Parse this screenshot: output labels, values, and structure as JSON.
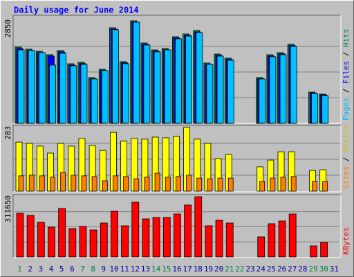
{
  "title": "Daily usage for June 2014",
  "chart_data": [
    {
      "type": "bar",
      "ylim": [
        0,
        2850
      ],
      "yticks": [
        2850
      ],
      "legend_separator": " / ",
      "series": [
        {
          "name": "Hits",
          "color": "#00805c",
          "values": [
            2118,
            2061,
            2003,
            1907,
            2022,
            1656,
            1695,
            1271,
            1502,
            2658,
            1714,
            2850,
            2234,
            2041,
            2080,
            2407,
            2484,
            2580,
            1675,
            1926,
            1810,
            0,
            0,
            1271,
            1906,
            1964,
            2195,
            0,
            867,
            809,
            0
          ]
        },
        {
          "name": "Files",
          "color": "#0000ff",
          "values": [
            2080,
            2025,
            1965,
            1870,
            1985,
            1620,
            1660,
            1240,
            1470,
            2620,
            1680,
            2810,
            2195,
            2005,
            2045,
            2370,
            2445,
            2540,
            1640,
            1890,
            1775,
            0,
            0,
            1240,
            1870,
            1930,
            2160,
            0,
            845,
            790,
            0
          ]
        },
        {
          "name": "Pages",
          "color": "#00c0ff",
          "values": [
            2041,
            2022,
            1964,
            1618,
            1945,
            1599,
            1637,
            1233,
            1464,
            2600,
            1656,
            2811,
            2176,
            1984,
            2041,
            2349,
            2426,
            2522,
            1637,
            1868,
            1752,
            0,
            0,
            1233,
            1849,
            1906,
            2137,
            0,
            828,
            770,
            0
          ]
        }
      ]
    },
    {
      "type": "bar",
      "ylim": [
        0,
        283
      ],
      "yticks": [
        283
      ],
      "legend_separator": " / ",
      "series": [
        {
          "name": "Visits",
          "color": "#ffff00",
          "text_color": "#d0c000",
          "values": [
            218,
            212,
            200,
            169,
            212,
            200,
            234,
            203,
            181,
            261,
            222,
            234,
            231,
            240,
            237,
            243,
            283,
            231,
            212,
            145,
            163,
            0,
            0,
            108,
            138,
            175,
            175,
            0,
            92,
            95,
            0
          ]
        },
        {
          "name": "Sites",
          "color": "#ff8000",
          "values": [
            68,
            71,
            68,
            62,
            83,
            71,
            68,
            65,
            46,
            68,
            65,
            55,
            62,
            80,
            62,
            65,
            71,
            58,
            55,
            58,
            58,
            0,
            0,
            43,
            58,
            62,
            65,
            0,
            43,
            43,
            0
          ]
        }
      ]
    },
    {
      "type": "bar",
      "ylim": [
        0,
        311650
      ],
      "yticks": [
        311650
      ],
      "categories": [
        "1",
        "2",
        "3",
        "4",
        "5",
        "6",
        "7",
        "8",
        "9",
        "10",
        "11",
        "12",
        "13",
        "14",
        "15",
        "16",
        "17",
        "18",
        "19",
        "20",
        "21",
        "22",
        "23",
        "24",
        "25",
        "26",
        "27",
        "28",
        "29",
        "30",
        "31"
      ],
      "category_colors": [
        "#008040",
        "#0000a0",
        "#0000a0",
        "#0000a0",
        "#0000a0",
        "#0000a0",
        "#008040",
        "#008040",
        "#0000a0",
        "#0000a0",
        "#0000a0",
        "#0000a0",
        "#0000a0",
        "#008040",
        "#008040",
        "#0000a0",
        "#0000a0",
        "#0000a0",
        "#0000a0",
        "#0000a0",
        "#008040",
        "#008040",
        "#0000a0",
        "#0000a0",
        "#0000a0",
        "#0000a0",
        "#0000a0",
        "#0000a0",
        "#008040",
        "#008040",
        "#0000a0"
      ],
      "series": [
        {
          "name": "KBytes",
          "color": "#ff0000",
          "values": [
            225660,
            214920,
            179100,
            154030,
            250740,
            146860,
            157610,
            139700,
            175520,
            236410,
            161190,
            282980,
            197010,
            204170,
            204170,
            222080,
            268650,
            311650,
            161190,
            189850,
            175520,
            0,
            0,
            103880,
            171940,
            186260,
            222080,
            0,
            57310,
            75220,
            0
          ]
        }
      ]
    }
  ]
}
